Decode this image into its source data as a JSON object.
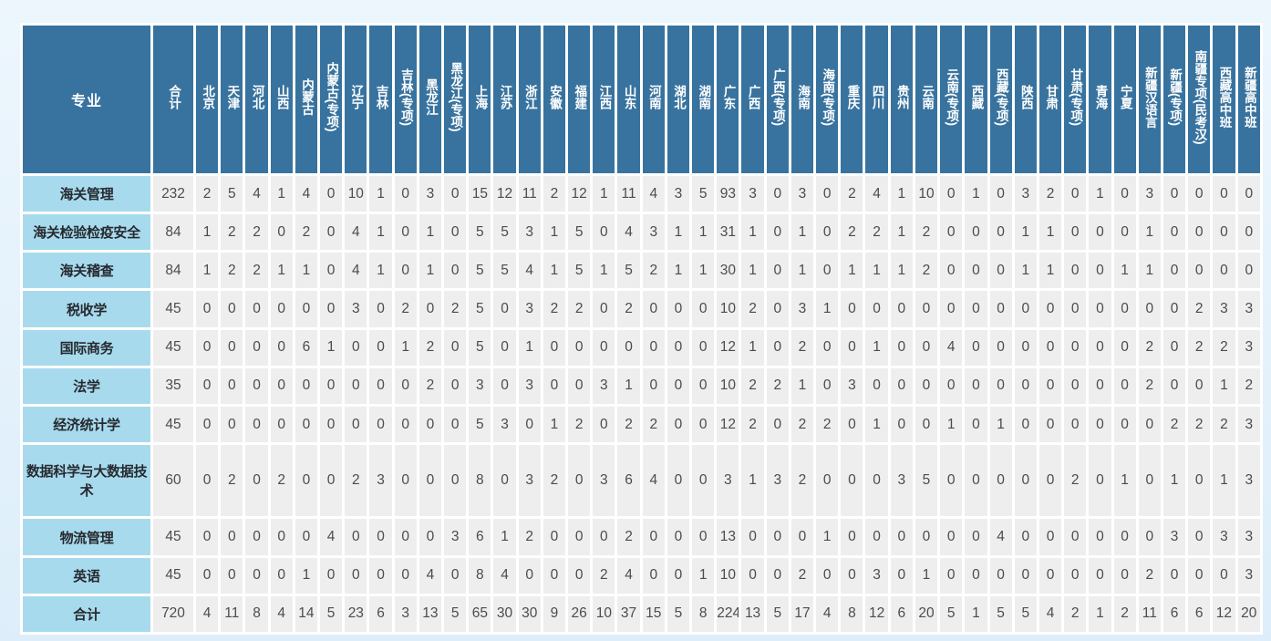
{
  "colors": {
    "page_bg_top": "#edf6fd",
    "page_bg_bottom": "#ddeefa",
    "header_bg": "#38739f",
    "header_text": "#ffffff",
    "label_bg": "#a8daee",
    "label_text": "#262a2e",
    "cell_bg": "#eeeeee",
    "cell_text": "#4c4c4c",
    "gap": "#ffffff"
  },
  "chart_data": {
    "type": "table",
    "corner_label": "专业",
    "columns": [
      "合计",
      "北京",
      "天津",
      "河北",
      "山西",
      "内蒙古",
      "内蒙古(专项)",
      "辽宁",
      "吉林",
      "吉林(专项)",
      "黑龙江",
      "黑龙江(专项)",
      "上海",
      "江苏",
      "浙江",
      "安徽",
      "福建",
      "江西",
      "山东",
      "河南",
      "湖北",
      "湖南",
      "广东",
      "广西",
      "广西(专项)",
      "海南",
      "海南(专项)",
      "重庆",
      "四川",
      "贵州",
      "云南",
      "云南(专项)",
      "西藏",
      "西藏(专项)",
      "陕西",
      "甘肃",
      "甘肃(专项)",
      "青海",
      "宁夏",
      "新疆汉语言",
      "新疆(专项)",
      "南疆专项(民考汉)",
      "西藏高中班",
      "新疆高中班"
    ],
    "rows": [
      {
        "label": "海关管理",
        "values": [
          232,
          2,
          5,
          4,
          1,
          4,
          0,
          10,
          1,
          0,
          3,
          0,
          15,
          12,
          11,
          2,
          12,
          1,
          11,
          4,
          3,
          5,
          93,
          3,
          0,
          3,
          0,
          2,
          4,
          1,
          10,
          0,
          1,
          0,
          3,
          2,
          0,
          1,
          0,
          3,
          0,
          0,
          0,
          0
        ]
      },
      {
        "label": "海关检验检疫安全",
        "values": [
          84,
          1,
          2,
          2,
          0,
          2,
          0,
          4,
          1,
          0,
          1,
          0,
          5,
          5,
          3,
          1,
          5,
          0,
          4,
          3,
          1,
          1,
          31,
          1,
          0,
          1,
          0,
          2,
          2,
          1,
          2,
          0,
          0,
          0,
          1,
          1,
          0,
          0,
          0,
          1,
          0,
          0,
          0,
          0
        ]
      },
      {
        "label": "海关稽查",
        "values": [
          84,
          1,
          2,
          2,
          1,
          1,
          0,
          4,
          1,
          0,
          1,
          0,
          5,
          5,
          4,
          1,
          5,
          1,
          5,
          2,
          1,
          1,
          30,
          1,
          0,
          1,
          0,
          1,
          1,
          1,
          2,
          0,
          0,
          0,
          1,
          1,
          0,
          0,
          1,
          1,
          0,
          0,
          0,
          0
        ]
      },
      {
        "label": "税收学",
        "values": [
          45,
          0,
          0,
          0,
          0,
          0,
          0,
          3,
          0,
          2,
          0,
          2,
          5,
          0,
          3,
          2,
          2,
          0,
          2,
          0,
          0,
          0,
          10,
          2,
          0,
          3,
          1,
          0,
          0,
          0,
          0,
          0,
          0,
          0,
          0,
          0,
          0,
          0,
          0,
          0,
          0,
          2,
          3,
          3
        ]
      },
      {
        "label": "国际商务",
        "values": [
          45,
          0,
          0,
          0,
          0,
          6,
          1,
          0,
          0,
          1,
          2,
          0,
          5,
          0,
          1,
          0,
          0,
          0,
          0,
          0,
          0,
          0,
          12,
          1,
          0,
          2,
          0,
          0,
          1,
          0,
          0,
          4,
          0,
          0,
          0,
          0,
          0,
          0,
          0,
          2,
          0,
          2,
          2,
          3
        ]
      },
      {
        "label": "法学",
        "values": [
          35,
          0,
          0,
          0,
          0,
          0,
          0,
          0,
          0,
          0,
          2,
          0,
          3,
          0,
          3,
          0,
          0,
          3,
          1,
          0,
          0,
          0,
          10,
          2,
          2,
          1,
          0,
          3,
          0,
          0,
          0,
          0,
          0,
          0,
          0,
          0,
          0,
          0,
          0,
          2,
          0,
          0,
          1,
          2
        ]
      },
      {
        "label": "经济统计学",
        "values": [
          45,
          0,
          0,
          0,
          0,
          0,
          0,
          0,
          0,
          0,
          0,
          0,
          5,
          3,
          0,
          1,
          2,
          0,
          2,
          2,
          0,
          0,
          12,
          2,
          0,
          2,
          2,
          0,
          1,
          0,
          0,
          1,
          0,
          1,
          0,
          0,
          0,
          0,
          0,
          0,
          2,
          2,
          2,
          3
        ]
      },
      {
        "label": "数据科学与大数据技术",
        "values": [
          60,
          0,
          2,
          0,
          2,
          0,
          0,
          2,
          3,
          0,
          0,
          0,
          8,
          0,
          3,
          2,
          0,
          3,
          6,
          4,
          0,
          0,
          3,
          1,
          3,
          2,
          0,
          0,
          0,
          3,
          5,
          0,
          0,
          0,
          0,
          0,
          2,
          0,
          1,
          0,
          1,
          0,
          1,
          3
        ]
      },
      {
        "label": "物流管理",
        "values": [
          45,
          0,
          0,
          0,
          0,
          0,
          4,
          0,
          0,
          0,
          0,
          3,
          6,
          1,
          2,
          0,
          0,
          0,
          2,
          0,
          0,
          0,
          13,
          0,
          0,
          0,
          1,
          0,
          0,
          0,
          0,
          0,
          0,
          4,
          0,
          0,
          0,
          0,
          0,
          0,
          3,
          0,
          3,
          3
        ]
      },
      {
        "label": "英语",
        "values": [
          45,
          0,
          0,
          0,
          0,
          1,
          0,
          0,
          0,
          0,
          4,
          0,
          8,
          4,
          0,
          0,
          0,
          2,
          4,
          0,
          0,
          1,
          10,
          0,
          0,
          2,
          0,
          0,
          3,
          0,
          1,
          0,
          0,
          0,
          0,
          0,
          0,
          0,
          0,
          2,
          0,
          0,
          0,
          3
        ]
      },
      {
        "label": "合计",
        "values": [
          720,
          4,
          11,
          8,
          4,
          14,
          5,
          23,
          6,
          3,
          13,
          5,
          65,
          30,
          30,
          9,
          26,
          10,
          37,
          15,
          5,
          8,
          224,
          13,
          5,
          17,
          4,
          8,
          12,
          6,
          20,
          5,
          1,
          5,
          5,
          4,
          2,
          1,
          2,
          11,
          6,
          6,
          12,
          20
        ]
      }
    ]
  }
}
